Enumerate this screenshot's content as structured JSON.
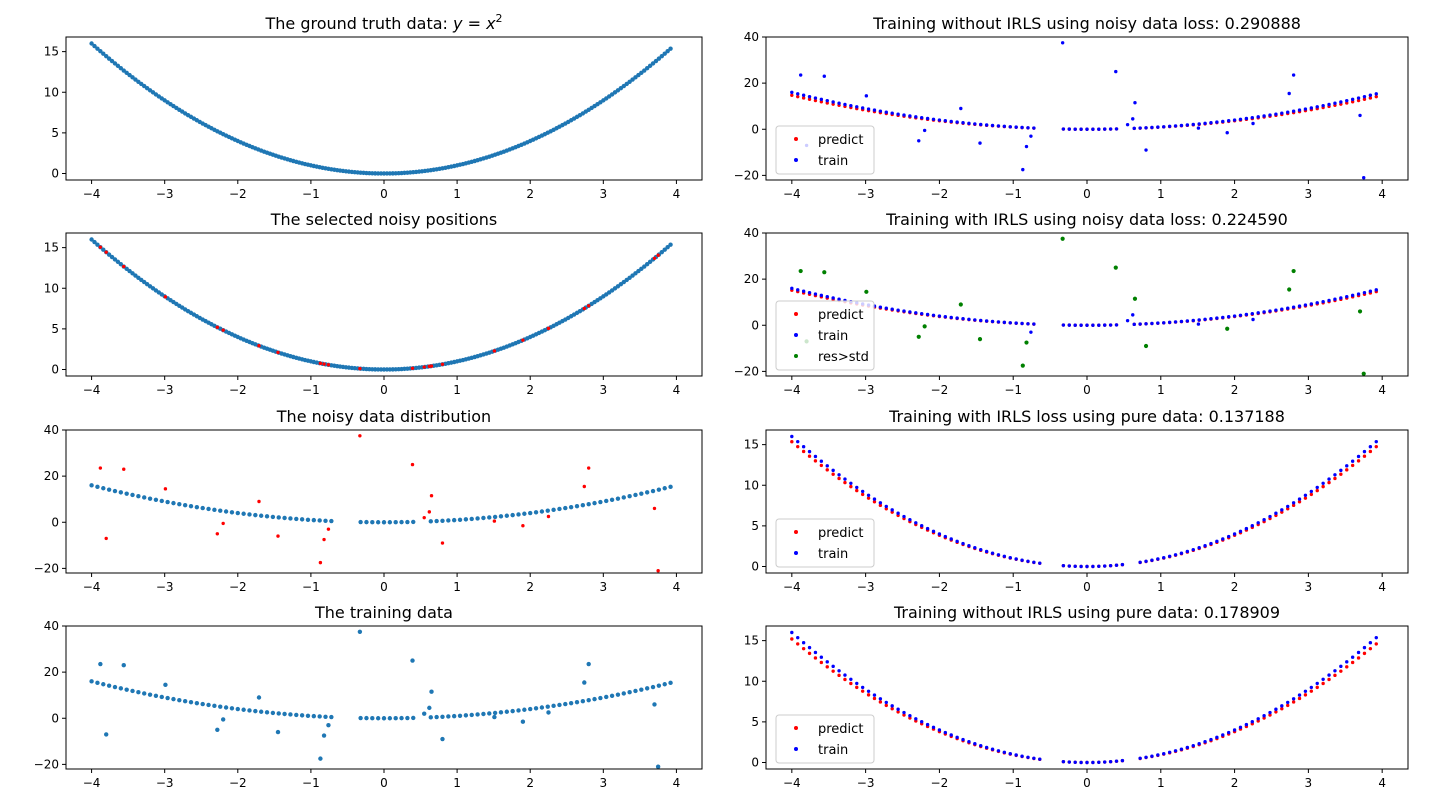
{
  "colors": {
    "default": "#1f77b4",
    "predict": "#ff0000",
    "train": "#0000ff",
    "outlier": "#008000"
  },
  "chart_data": [
    {
      "id": "ground-truth",
      "type": "scatter",
      "title": "The ground truth data: ",
      "title_math": "y = x",
      "title_sup": "2",
      "xlim": [
        -4.35,
        4.35
      ],
      "ylim": [
        -0.8,
        16.8
      ],
      "xticks": [
        -4,
        -3,
        -2,
        -1,
        0,
        1,
        2,
        3,
        4
      ],
      "yticks": [
        0,
        5,
        10,
        15
      ],
      "series": [
        {
          "role": "parabola",
          "color_key": "default",
          "generator": "parabola",
          "step": 0.04
        }
      ]
    },
    {
      "id": "noisy-positions",
      "type": "scatter",
      "title": "The selected noisy positions",
      "xlim": [
        -4.35,
        4.35
      ],
      "ylim": [
        -0.8,
        16.8
      ],
      "xticks": [
        -4,
        -3,
        -2,
        -1,
        0,
        1,
        2,
        3,
        4
      ],
      "yticks": [
        0,
        5,
        10,
        15
      ],
      "series": [
        {
          "role": "parabola",
          "color_key": "default",
          "generator": "parabola",
          "step": 0.04
        },
        {
          "role": "selected",
          "color_key": "predict",
          "generator": "noisy_x_on_parabola"
        }
      ]
    },
    {
      "id": "noisy-distribution",
      "type": "scatter",
      "title": "The noisy data distribution",
      "xlim": [
        -4.35,
        4.35
      ],
      "ylim": [
        -22,
        40
      ],
      "xticks": [
        -4,
        -3,
        -2,
        -1,
        0,
        1,
        2,
        3,
        4
      ],
      "yticks": [
        -20,
        0,
        20,
        40
      ],
      "series": [
        {
          "role": "clean",
          "color_key": "default",
          "generator": "parabola_sparse",
          "step": 0.08
        },
        {
          "role": "noisy",
          "color_key": "predict",
          "generator": "noisy_points"
        }
      ]
    },
    {
      "id": "training-data",
      "type": "scatter",
      "title": "The training data",
      "xlim": [
        -4.35,
        4.35
      ],
      "ylim": [
        -22,
        40
      ],
      "xticks": [
        -4,
        -3,
        -2,
        -1,
        0,
        1,
        2,
        3,
        4
      ],
      "yticks": [
        -20,
        0,
        20,
        40
      ],
      "series": [
        {
          "role": "clean",
          "color_key": "default",
          "generator": "parabola_sparse",
          "step": 0.08
        },
        {
          "role": "noisy",
          "color_key": "default",
          "generator": "noisy_points"
        }
      ]
    },
    {
      "id": "no-irls-noisy",
      "type": "scatter",
      "title": "Training without IRLS using noisy data loss: 0.290888",
      "xlim": [
        -4.35,
        4.35
      ],
      "ylim": [
        -22,
        40
      ],
      "xticks": [
        -4,
        -3,
        -2,
        -1,
        0,
        1,
        2,
        3,
        4
      ],
      "yticks": [
        -20,
        0,
        20,
        40
      ],
      "legend": [
        "predict",
        "train"
      ],
      "legend_loc": "lower-left",
      "series": [
        {
          "name": "predict",
          "color_key": "predict",
          "generator": "parabola_sparse",
          "step": 0.08,
          "scale": 0.92
        },
        {
          "name": "train",
          "color_key": "train",
          "generator": "parabola_sparse",
          "step": 0.08
        },
        {
          "name": "train",
          "color_key": "train",
          "generator": "noisy_points"
        }
      ]
    },
    {
      "id": "irls-noisy",
      "type": "scatter",
      "title": "Training with IRLS using noisy data loss: 0.224590",
      "xlim": [
        -4.35,
        4.35
      ],
      "ylim": [
        -22,
        40
      ],
      "xticks": [
        -4,
        -3,
        -2,
        -1,
        0,
        1,
        2,
        3,
        4
      ],
      "yticks": [
        -20,
        0,
        20,
        40
      ],
      "legend": [
        "predict",
        "train",
        "res>std"
      ],
      "legend_loc": "lower-left",
      "series": [
        {
          "name": "predict",
          "color_key": "predict",
          "generator": "parabola_sparse",
          "step": 0.08,
          "scale": 0.95
        },
        {
          "name": "train",
          "color_key": "train",
          "generator": "parabola_sparse",
          "step": 0.08
        },
        {
          "name": "train",
          "color_key": "train",
          "generator": "noisy_small"
        },
        {
          "name": "res>std",
          "color_key": "outlier",
          "generator": "noisy_large"
        }
      ]
    },
    {
      "id": "irls-pure",
      "type": "scatter",
      "title": "Training with IRLS loss using pure data: 0.137188",
      "xlim": [
        -4.35,
        4.35
      ],
      "ylim": [
        -0.8,
        16.8
      ],
      "xticks": [
        -4,
        -3,
        -2,
        -1,
        0,
        1,
        2,
        3,
        4
      ],
      "yticks": [
        0,
        5,
        10,
        15
      ],
      "legend": [
        "predict",
        "train"
      ],
      "legend_loc": "lower-left",
      "series": [
        {
          "name": "predict",
          "color_key": "predict",
          "generator": "parabola_pure",
          "step": 0.08,
          "scale": 0.96
        },
        {
          "name": "train",
          "color_key": "train",
          "generator": "parabola_pure",
          "step": 0.08
        }
      ]
    },
    {
      "id": "no-irls-pure",
      "type": "scatter",
      "title": "Training without IRLS using pure data: 0.178909",
      "xlim": [
        -4.35,
        4.35
      ],
      "ylim": [
        -0.8,
        16.8
      ],
      "xticks": [
        -4,
        -3,
        -2,
        -1,
        0,
        1,
        2,
        3,
        4
      ],
      "yticks": [
        0,
        5,
        10,
        15
      ],
      "legend": [
        "predict",
        "train"
      ],
      "legend_loc": "lower-left",
      "series": [
        {
          "name": "predict",
          "color_key": "predict",
          "generator": "parabola_pure",
          "step": 0.08,
          "scale": 0.95
        },
        {
          "name": "train",
          "color_key": "train",
          "generator": "parabola_pure",
          "step": 0.08
        }
      ]
    }
  ],
  "noisy_points": [
    [
      -3.88,
      23.5
    ],
    [
      -3.8,
      -7.0
    ],
    [
      -3.56,
      23.0
    ],
    [
      -2.99,
      14.5
    ],
    [
      -2.28,
      -5.0
    ],
    [
      -2.2,
      -0.5
    ],
    [
      -1.71,
      9.0
    ],
    [
      -1.45,
      -6.0
    ],
    [
      -0.87,
      -17.5
    ],
    [
      -0.82,
      -7.5
    ],
    [
      -0.76,
      -3.0
    ],
    [
      -0.33,
      37.5
    ],
    [
      0.39,
      25.0
    ],
    [
      0.55,
      2.0
    ],
    [
      0.62,
      4.5
    ],
    [
      0.65,
      11.5
    ],
    [
      0.8,
      -9.0
    ],
    [
      1.51,
      0.5
    ],
    [
      1.9,
      -1.5
    ],
    [
      2.25,
      2.5
    ],
    [
      2.74,
      15.5
    ],
    [
      2.8,
      23.5
    ],
    [
      3.7,
      6.0
    ],
    [
      3.75,
      -21.0
    ]
  ],
  "gap_intervals": [
    [
      -0.68,
      -0.38
    ],
    [
      0.42,
      0.62
    ]
  ],
  "pure_gaps": [
    [
      -0.62,
      -0.34
    ],
    [
      0.48,
      0.72
    ]
  ]
}
